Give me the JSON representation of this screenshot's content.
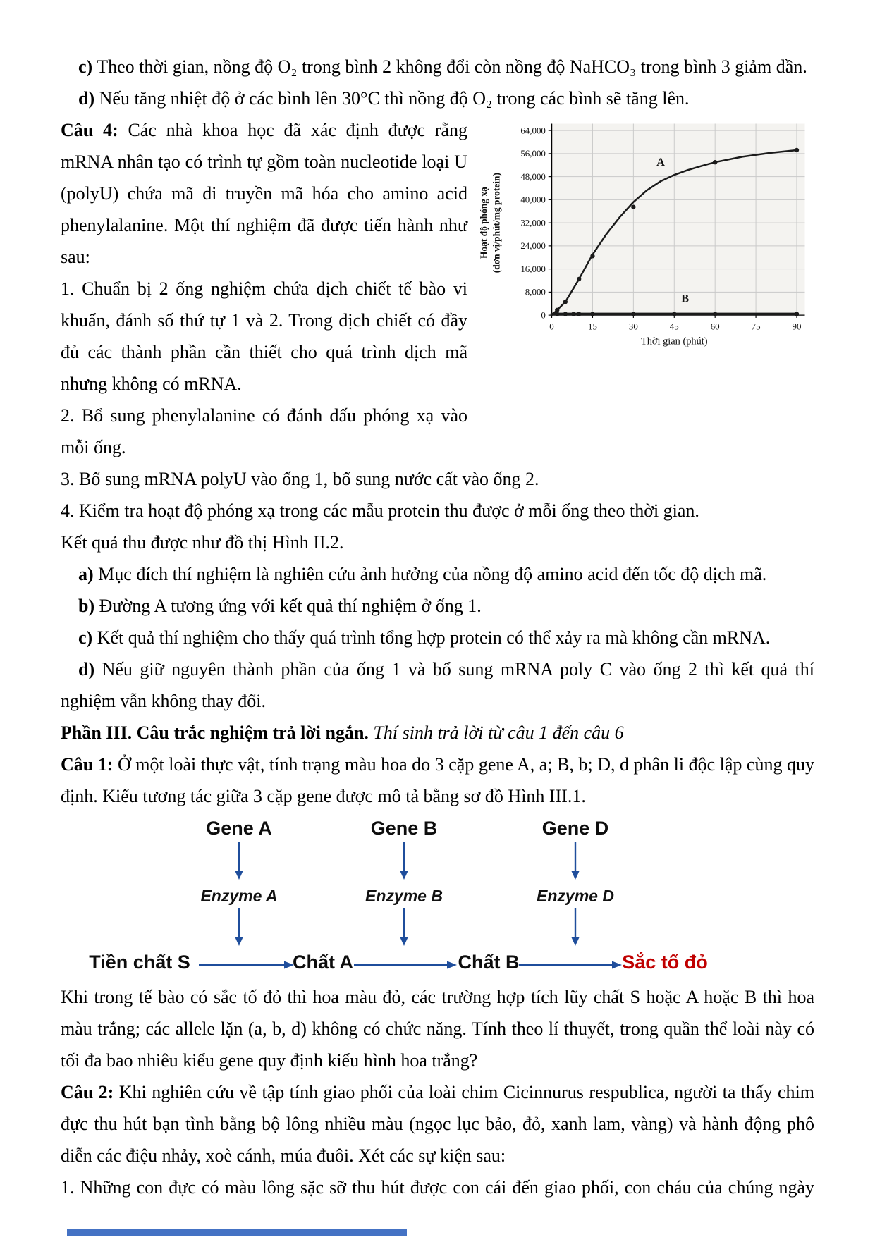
{
  "colors": {
    "arrow_blue": "#1F4E9C",
    "pigment_red": "#C00000",
    "footer_bar_blue": "#4472C4"
  },
  "question2_options": {
    "c_label": "c)",
    "c_text": "Theo thời gian, nồng độ O₂ trong bình 2 không đổi còn nồng độ NaHCO₃ trong bình 3 giảm dần.",
    "d_label": "d)",
    "d_text": "Nếu tăng nhiệt độ ở các bình lên 30°C thì nồng độ O₂ trong các bình sẽ tăng lên."
  },
  "question4": {
    "label": "Câu 4:",
    "intro": "Các nhà khoa học đã xác định được rằng mRNA nhân tạo có trình tự gồm toàn nucleotide loại U (polyU) chứa mã di truyền mã hóa cho amino acid phenylalanine. Một thí nghiệm đã được tiến hành như sau:",
    "step1": "1. Chuẩn bị 2 ống nghiệm chứa dịch chiết tế bào vi khuẩn, đánh số thứ tự 1 và 2. Trong dịch chiết có đầy đủ các thành phần cần thiết cho quá trình dịch mã nhưng không có mRNA.",
    "step2": "2. Bổ sung phenylalanine có đánh dấu phóng xạ vào mỗi ống.",
    "step3": "3. Bổ sung mRNA polyU vào ống 1, bổ sung nước cất vào ống 2.",
    "step4": "4. Kiểm tra hoạt độ phóng xạ trong các mẫu protein thu được ở mỗi ống theo thời gian.",
    "result_note": "Kết quả thu được như đồ thị Hình II.2.",
    "options": [
      {
        "label": "a)",
        "text": "Mục đích thí nghiệm là nghiên cứu ảnh hưởng của nồng độ amino acid đến tốc độ dịch mã."
      },
      {
        "label": "b)",
        "text": "Đường A tương ứng với kết quả thí nghiệm ở ống 1."
      },
      {
        "label": "c)",
        "text": "Kết quả thí nghiệm cho thấy quá trình tổng hợp protein có thể xảy ra mà không cần mRNA."
      },
      {
        "label": "d)",
        "text": "Nếu giữ nguyên thành phần của ống 1 và bổ sung mRNA poly C vào ống 2 thì kết quả thí nghiệm vẫn không thay đổi."
      }
    ]
  },
  "part3": {
    "heading_bold": "Phần III. Câu trắc nghiệm trả lời ngắn.",
    "heading_italic": "Thí sinh trả lời từ câu 1 đến câu 6",
    "q1_label": "Câu 1:",
    "q1_text": "Ở một loài thực vật, tính trạng màu hoa do 3 cặp gene A, a; B, b; D, d phân li độc lập cùng quy định. Kiểu tương tác giữa 3 cặp gene được mô tả bằng sơ đồ Hình III.1.",
    "q1_after_diagram": "Khi trong tế bào có sắc tố đỏ thì hoa màu đỏ, các trường hợp tích lũy chất S hoặc A hoặc B thì hoa màu trắng; các allele lặn (a, b, d) không có chức năng. Tính theo lí thuyết, trong quần thể loài này có tối đa bao nhiêu kiểu gene quy định kiểu hình hoa trắng?",
    "q2_label": "Câu 2:",
    "q2_text": "Khi nghiên cứu về tập tính giao phối của loài chim Cicinnurus respublica, người ta thấy chim đực thu hút bạn tình bằng bộ lông nhiều màu (ngọc lục bảo, đỏ, xanh lam, vàng) và hành động phô diễn các điệu nhảy, xoè cánh, múa đuôi. Xét các sự kiện sau:",
    "q2_event1": "1. Những con đực có màu lông sặc sỡ thu hút được con cái đến giao phối, con cháu của chúng ngày"
  },
  "diagram": {
    "genes": [
      "Gene A",
      "Gene B",
      "Gene D"
    ],
    "enzymes": [
      "Enzyme A",
      "Enzyme B",
      "Enzyme D"
    ],
    "chain": [
      "Tiền chất S",
      "Chất A",
      "Chất B",
      "Sắc tố đỏ"
    ]
  },
  "chart_data": {
    "type": "line",
    "title": "",
    "xlabel": "Thời gian (phút)",
    "ylabel_line1": "Hoạt độ phóng xạ",
    "ylabel_line2": "(đơn vị/phút/mg protein)",
    "xlim": [
      0,
      90
    ],
    "ylim": [
      0,
      64000
    ],
    "grid": true,
    "x_ticks": [
      0,
      15,
      30,
      45,
      60,
      75,
      90
    ],
    "x_tick_labels": [
      "0",
      "15",
      "30",
      "45",
      "60",
      "75",
      "90"
    ],
    "y_ticks": [
      0,
      8000,
      16000,
      24000,
      32000,
      40000,
      48000,
      56000,
      64000
    ],
    "y_tick_labels": [
      "0",
      "8,000",
      "16,000",
      "24,000",
      "32,000",
      "40,000",
      "48,000",
      "56,000",
      "64,000"
    ],
    "series": [
      {
        "name": "A",
        "label_x": 40,
        "label_y": 51800,
        "width": 2.6,
        "point_x": [
          2,
          5,
          10,
          15,
          30,
          60,
          90
        ],
        "point_y": [
          1800,
          4600,
          12500,
          20500,
          37500,
          53000,
          57200
        ],
        "curve_x": [
          0,
          2,
          5,
          10,
          15,
          20,
          25,
          30,
          35,
          40,
          45,
          50,
          55,
          60,
          70,
          80,
          90
        ],
        "curve_y": [
          0,
          1800,
          4600,
          12500,
          21000,
          28000,
          34000,
          39200,
          43300,
          46400,
          48600,
          50300,
          51700,
          53000,
          54900,
          56200,
          57200
        ]
      },
      {
        "name": "B",
        "label_x": 49,
        "label_y": 4600,
        "width": 4,
        "point_x": [
          2,
          5,
          8,
          10,
          15,
          30,
          45,
          60,
          90
        ],
        "point_y": [
          400,
          400,
          400,
          400,
          400,
          400,
          400,
          400,
          400
        ],
        "curve_x": [
          0,
          90
        ],
        "curve_y": [
          400,
          400
        ]
      }
    ]
  }
}
